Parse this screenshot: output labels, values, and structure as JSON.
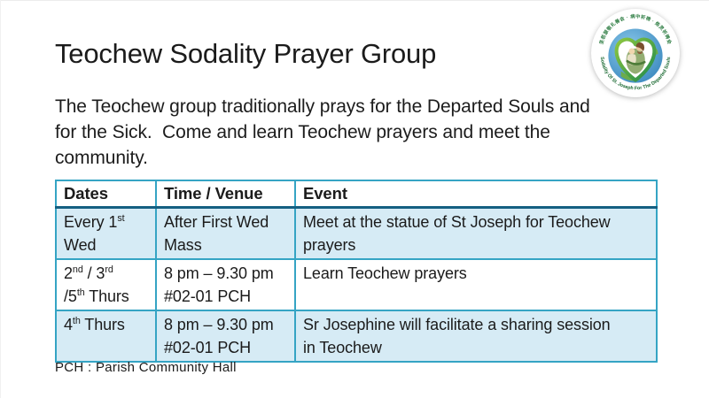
{
  "slide": {
    "title": "Teochew Sodality Prayer Group",
    "intro_lines": [
      "The Teochew group traditionally prays for the Departed Souls and",
      "for the Sick.  Come and learn Teochew prayers and meet the",
      "community."
    ],
    "footnote": "PCH : Parish Community Hall"
  },
  "logo": {
    "name": "Sodality of St. Joseph logo",
    "top_arc_text": "圣若瑟敬礼善会 · 病中祈祷 · 炼灵祈祷会",
    "bottom_arc_text": "Sodality Of St. Joseph For The Departed Souls"
  },
  "table": {
    "headers": [
      "Dates",
      "Time / Venue",
      "Event"
    ],
    "rows": [
      {
        "cells": [
          [
            "Every 1{st}",
            "Wed"
          ],
          [
            "After First Wed",
            "Mass"
          ],
          [
            "Meet at the statue of St Joseph for Teochew",
            "prayers"
          ]
        ]
      },
      {
        "cells": [
          [
            "2{nd} / 3{rd}",
            "/5{th} Thurs"
          ],
          [
            "8 pm – 9.30 pm",
            "#02-01 PCH"
          ],
          [
            "Learn Teochew prayers"
          ]
        ]
      },
      {
        "cells": [
          [
            "4{th} Thurs"
          ],
          [
            "8 pm – 9.30 pm",
            "#02-01 PCH"
          ],
          [
            "Sr Josephine will facilitate a sharing session",
            "in Teochew"
          ]
        ]
      }
    ]
  },
  "colors": {
    "table_border": "#35A4C4",
    "header_underline": "#156082",
    "band_fill": "#D6EBF5",
    "text": "#1C1C1C",
    "logo_green": "#2E7D43",
    "logo_globe_blue": "#3F8FC4"
  }
}
